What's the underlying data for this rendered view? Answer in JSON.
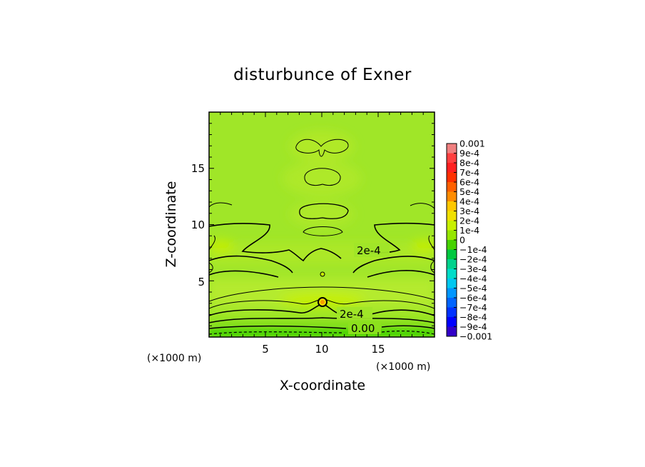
{
  "chart_data": {
    "type": "heatmap",
    "title": "disturbunce of Exner",
    "xlabel": "X-coordinate",
    "ylabel": "Z-coordinate",
    "x_unit": "(×1000 m)",
    "z_unit": "(×1000 m)",
    "xlim": [
      0,
      20
    ],
    "ylim": [
      0,
      20
    ],
    "x_ticks": [
      "5",
      "10",
      "15"
    ],
    "y_ticks": [
      "5",
      "10",
      "15"
    ],
    "colorbar": {
      "labels": [
        "0.001",
        "9e-4",
        "8e-4",
        "7e-4",
        "6e-4",
        "5e-4",
        "4e-4",
        "3e-4",
        "2e-4",
        "1e-4",
        "0",
        "−1e-4",
        "−2e-4",
        "−3e-4",
        "−4e-4",
        "−5e-4",
        "−6e-4",
        "−7e-4",
        "−8e-4",
        "−9e-4",
        "−0.001"
      ],
      "colors": [
        "#f08080",
        "#ff4040",
        "#ff2020",
        "#ff3000",
        "#ff6000",
        "#ff8c00",
        "#ffc800",
        "#f0e000",
        "#c8f000",
        "#96e600",
        "#46d200",
        "#00c840",
        "#00d28c",
        "#00dcc8",
        "#00c8f0",
        "#0096ff",
        "#0064ff",
        "#0032ff",
        "#0000ff",
        "#3200c8",
        "#6400b4"
      ]
    },
    "contour_labels": [
      "2e-4",
      "2e-4",
      "0.00"
    ],
    "field_summary": "Exner disturbance mostly between 1e-4 and 3e-4; lower values near the bottom boundary (z < 1 km) with a 0.00 contour; contour labels 2e-4 near z≈7.5 km and z≈2 km; symmetric structures about x=10 km."
  }
}
